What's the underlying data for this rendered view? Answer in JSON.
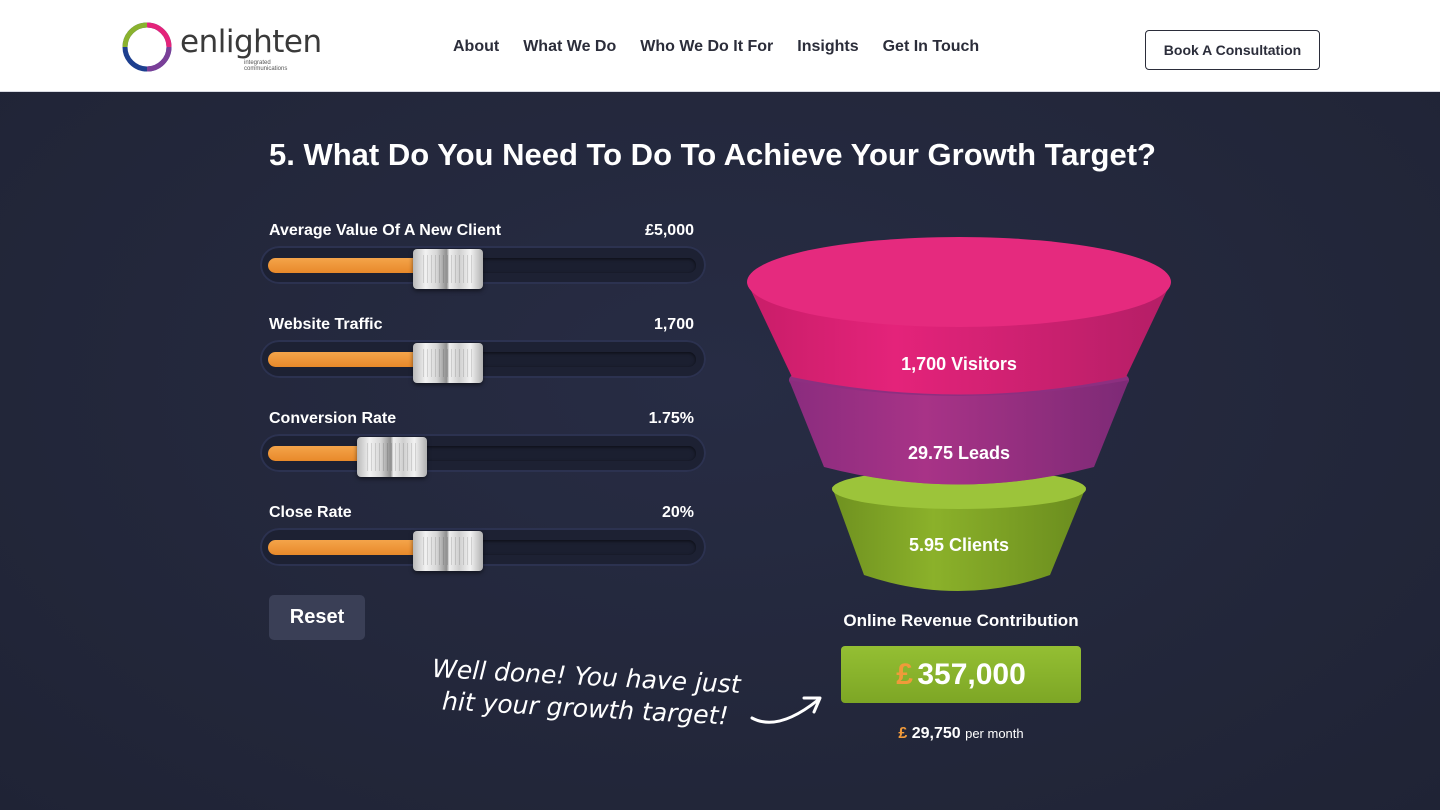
{
  "brand": {
    "name": "enlighten",
    "tagline": "integrated communications",
    "colors": {
      "pink": "#e4237a",
      "purple": "#7a3f98",
      "blue": "#1d3f8f",
      "green": "#8ab22e",
      "orange": "#f09a3a"
    }
  },
  "nav": {
    "items": [
      "About",
      "What We Do",
      "Who We Do It For",
      "Insights",
      "Get In Touch"
    ],
    "cta": "Book A Consultation"
  },
  "calculator": {
    "title": "5. What Do You Need To Do To Achieve Your Growth Target?",
    "sliders": [
      {
        "label": "Average Value Of A New Client",
        "value": "£5,000",
        "position": 0.42
      },
      {
        "label": "Website Traffic",
        "value": "1,700",
        "position": 0.42
      },
      {
        "label": "Conversion Rate",
        "value": "1.75%",
        "position": 0.29
      },
      {
        "label": "Close Rate",
        "value": "20%",
        "position": 0.42
      }
    ],
    "reset_label": "Reset"
  },
  "funnel": {
    "visitors": "1,700 Visitors",
    "leads": "29.75 Leads",
    "clients": "5.95 Clients"
  },
  "revenue": {
    "title": "Online Revenue Contribution",
    "currency": "£",
    "amount": "357,000",
    "monthly_currency": "£",
    "monthly_amount": "29,750",
    "monthly_suffix": "per month"
  },
  "message": {
    "line1": "Well done! You have just",
    "line2": "hit your growth target!"
  }
}
